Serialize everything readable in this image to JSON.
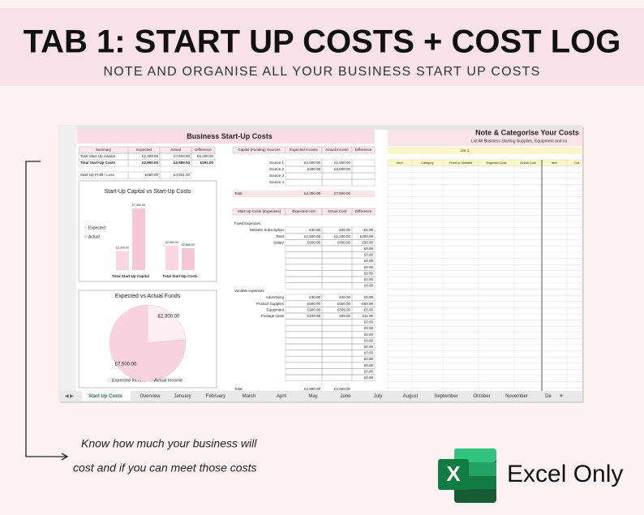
{
  "header": {
    "title": "TAB 1: START UP COSTS + COST LOG",
    "subtitle": "NOTE AND ORGANISE ALL YOUR BUSINESS START UP COSTS"
  },
  "sheet": {
    "title": "Business Start-Up Costs",
    "summary": {
      "columns": [
        "Summary",
        "Expected",
        "Actual",
        "Difference"
      ],
      "rows": [
        [
          "Total Start-Up Capital",
          "£2,300.00",
          "£7,500.00",
          "£5,200.00"
        ],
        [
          "Total Start-Up Costs",
          "£2,960.00",
          "£2,669.00",
          "£291.00"
        ]
      ],
      "profit": [
        "Start-Up Profit / Loss",
        "-£660.00",
        "£4,831.00"
      ]
    },
    "capital_chart": {
      "type": "bar",
      "title": "Start-Up Capital vs Start-Up Costs",
      "categories": [
        "Total Start-Up Capital",
        "Total Start-Up Costs"
      ],
      "series": [
        {
          "name": "Expected",
          "color": "#f9d6e1",
          "values": [
            2300,
            2960
          ],
          "value_labels": [
            "£2,300.00",
            "£2,960.00"
          ]
        },
        {
          "name": "Actual",
          "color": "#f5c6d5",
          "values": [
            7500,
            2669
          ],
          "value_labels": [
            "£7,500.00",
            "£2,669.00"
          ]
        }
      ]
    },
    "funds_chart": {
      "type": "pie",
      "title": "Expected vs Actual Funds",
      "categories": [
        "Expected Income",
        "Actual Income"
      ],
      "values": [
        2300,
        7500
      ],
      "value_labels": [
        "£2,300.00",
        "£7,500.00"
      ],
      "colors": [
        "#fdeef3",
        "#f7d3df"
      ]
    },
    "capital_table": {
      "columns": [
        "Capital (Funding) Sources",
        "Expected Income",
        "Actual Income",
        "Difference"
      ],
      "rows": [
        [
          "Source 1",
          "£2,000.00",
          "£1,500.00",
          null
        ],
        [
          "Source 2",
          "£300.00",
          "£6,000.00",
          null
        ],
        [
          "Source 3",
          null,
          null,
          null
        ],
        [
          "Source 4",
          null,
          null,
          null
        ]
      ],
      "total": [
        "Total",
        "£2,300.00",
        "£7,500.00"
      ]
    },
    "costs_table": {
      "columns": [
        "Start-Up Costs (Expenses)",
        "Expected cost",
        "Actual Cost",
        "Difference"
      ],
      "fixed_label": "Fixed Expenses",
      "fixed_rows": [
        [
          "Website Subscription",
          "£30.00",
          "£35.00",
          "-£5.00"
        ],
        [
          "Rent",
          "£1,500.00",
          "£1,200.00",
          "£300.00"
        ],
        [
          "Salary",
          "£500.00",
          "£450.00",
          "£50.00"
        ]
      ],
      "fixed_blank": [
        "£0.00",
        "£0.00",
        "£0.00",
        "£0.00",
        "£0.00",
        "£0.00",
        "£0.00"
      ],
      "variable_label": "Variable expenses",
      "variable_rows": [
        [
          "Advertising",
          "£30.00",
          "£30.00",
          "£0.00"
        ],
        [
          "Product Supplies",
          "£500.00",
          "£560.00",
          "-£60.00"
        ],
        [
          "Equipment",
          "£300.00",
          "£305.00",
          "-£5.00"
        ],
        [
          "Postage costs",
          "£100.00",
          "£89.00",
          "£11.00"
        ]
      ],
      "variable_blank": [
        "£0.00",
        "£0.00",
        "£0.00",
        "£0.00",
        "£0.00",
        "£0.00",
        "£0.00",
        "£0.00",
        "£0.00",
        "£0.00"
      ],
      "total": [
        "Total",
        "£2,960.00",
        "£2,669.00"
      ]
    }
  },
  "cost_log": {
    "title": "Note & Categorise Your Costs",
    "subtitle": "List All Business Starting Supplies, Equipment and co",
    "list_label": "List 1",
    "columns": [
      "Item",
      "Category",
      "Fixed or Variable",
      "Expected Cost",
      "Actual Cost",
      "Item",
      "Cat"
    ]
  },
  "tabs": [
    "Start Up Costs",
    "Overview",
    "January",
    "February",
    "March",
    "April",
    "May",
    "June",
    "July",
    "August",
    "September",
    "October",
    "November",
    "De"
  ],
  "new_tab": "+",
  "footer": {
    "note": [
      "Know how much your business will",
      "cost and if you can meet those costs"
    ],
    "badge": "Excel Only",
    "logo": "X"
  }
}
